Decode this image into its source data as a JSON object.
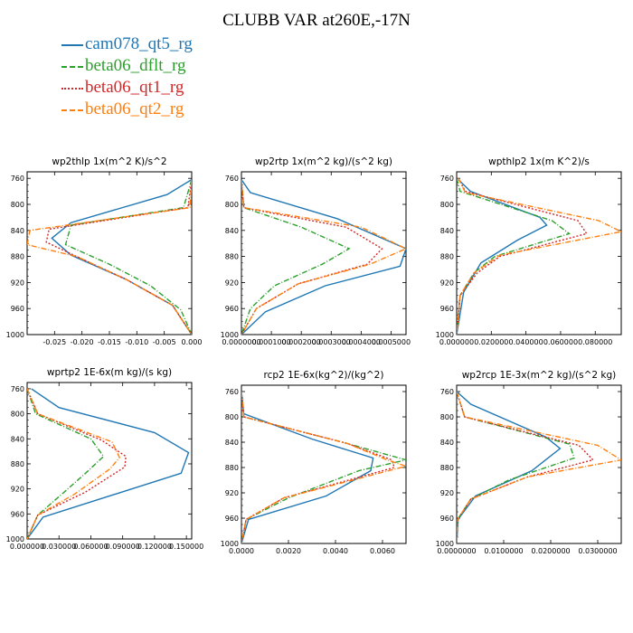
{
  "title": "CLUBB VAR at260E,-17N",
  "legend": [
    {
      "name": "cam078_qt5_rg",
      "color": "#1f77b4",
      "dash": "solid"
    },
    {
      "name": "beta06_dflt_rg",
      "color": "#2ca02c",
      "dash": "dashdot"
    },
    {
      "name": "beta06_qt1_rg",
      "color": "#d62728",
      "dash": "dotted"
    },
    {
      "name": "beta06_qt2_rg",
      "color": "#ff7f0e",
      "dash": "dashdot"
    }
  ],
  "chart_data": [
    {
      "type": "line",
      "title": "wp2thlp   1x(m^2 K)/s^2",
      "xlim": [
        -0.03,
        0.0
      ],
      "ylim": [
        1000,
        750
      ],
      "xticks": [
        "-0.025",
        "-0.020",
        "-0.015",
        "-0.010",
        "-0.005",
        "0.000"
      ],
      "xtick_values": [
        -0.025,
        -0.02,
        -0.015,
        -0.01,
        -0.005,
        0.0
      ],
      "yticks": [
        760,
        800,
        840,
        880,
        920,
        960,
        1000
      ],
      "series": [
        {
          "name": "cam078_qt5_rg",
          "x": [
            0.0,
            -0.0045,
            -0.022,
            -0.0255,
            -0.022,
            -0.012,
            -0.0035,
            0.0
          ],
          "y": [
            762,
            785,
            828,
            852,
            878,
            915,
            955,
            1000
          ]
        },
        {
          "name": "beta06_dflt_rg",
          "x": [
            0.0,
            -0.0015,
            -0.022,
            -0.023,
            -0.015,
            -0.0075,
            -0.002,
            0.0
          ],
          "y": [
            762,
            805,
            832,
            862,
            892,
            925,
            962,
            1000
          ]
        },
        {
          "name": "beta06_qt1_rg",
          "x": [
            0.0,
            -0.0007,
            -0.026,
            -0.0265,
            -0.021,
            -0.012,
            -0.0035,
            0.0
          ],
          "y": [
            762,
            805,
            838,
            858,
            880,
            915,
            955,
            1000
          ]
        },
        {
          "name": "beta06_qt2_rg",
          "x": [
            0.0,
            -0.0003,
            -0.0295,
            -0.03,
            -0.021,
            -0.012,
            -0.0035,
            0.0
          ],
          "y": [
            762,
            805,
            840,
            862,
            880,
            915,
            955,
            1000
          ]
        }
      ]
    },
    {
      "type": "line",
      "title": "wp2rtp   1x(m^2 kg)/(s^2 kg)",
      "xlim": [
        0.0,
        0.00055
      ],
      "ylim": [
        1000,
        750
      ],
      "xticks": [
        "0.0000000",
        "0.0001000",
        "0.0002000",
        "0.0003000",
        "0.0004000",
        "0.0005000"
      ],
      "xtick_values": [
        0.0,
        0.0001,
        0.0002,
        0.0003,
        0.0004,
        0.0005
      ],
      "yticks": [
        760,
        800,
        840,
        880,
        920,
        960,
        1000
      ],
      "series": [
        {
          "name": "cam078_qt5_rg",
          "x": [
            0.0,
            3e-05,
            0.00032,
            0.00055,
            0.00053,
            0.00028,
            8e-05,
            0.0
          ],
          "y": [
            762,
            782,
            822,
            868,
            895,
            925,
            965,
            1000
          ]
        },
        {
          "name": "beta06_dflt_rg",
          "x": [
            0.0,
            8e-06,
            0.0002,
            0.00036,
            0.00027,
            0.00011,
            3e-05,
            0.0
          ],
          "y": [
            762,
            805,
            835,
            868,
            892,
            925,
            960,
            1000
          ]
        },
        {
          "name": "beta06_qt1_rg",
          "x": [
            0.0,
            8e-06,
            0.00035,
            0.00047,
            0.00042,
            0.00019,
            5e-05,
            0.0
          ],
          "y": [
            762,
            805,
            835,
            868,
            892,
            922,
            960,
            1000
          ]
        },
        {
          "name": "beta06_qt2_rg",
          "x": [
            0.0,
            8e-06,
            0.0004,
            0.00055,
            0.00043,
            0.00019,
            5e-05,
            0.0
          ],
          "y": [
            762,
            805,
            835,
            868,
            892,
            922,
            960,
            1000
          ]
        }
      ]
    },
    {
      "type": "line",
      "title": "wpthlp2   1x(m K^2)/s",
      "xlim": [
        0.0,
        0.095
      ],
      "ylim": [
        1000,
        750
      ],
      "xticks": [
        "0.000000",
        "0.020000",
        "0.040000",
        "0.060000",
        "0.080000"
      ],
      "xtick_values": [
        0.0,
        0.02,
        0.04,
        0.06,
        0.08
      ],
      "yticks": [
        760,
        800,
        840,
        880,
        920,
        960,
        1000
      ],
      "series": [
        {
          "name": "cam078_qt5_rg",
          "x": [
            0.001,
            0.008,
            0.048,
            0.052,
            0.035,
            0.014,
            0.004,
            0.0
          ],
          "y": [
            762,
            780,
            820,
            832,
            855,
            890,
            935,
            1000
          ]
        },
        {
          "name": "beta06_dflt_rg",
          "x": [
            0.0,
            0.002,
            0.055,
            0.065,
            0.022,
            0.01,
            0.002,
            0.0
          ],
          "y": [
            760,
            780,
            825,
            845,
            880,
            905,
            940,
            1000
          ]
        },
        {
          "name": "beta06_qt1_rg",
          "x": [
            0.001,
            0.005,
            0.07,
            0.075,
            0.025,
            0.012,
            0.002,
            0.0
          ],
          "y": [
            760,
            780,
            825,
            845,
            880,
            905,
            940,
            1000
          ]
        },
        {
          "name": "beta06_qt2_rg",
          "x": [
            0.001,
            0.005,
            0.082,
            0.095,
            0.025,
            0.01,
            0.002,
            0.0
          ],
          "y": [
            760,
            782,
            825,
            842,
            878,
            905,
            940,
            1000
          ]
        }
      ]
    },
    {
      "type": "line",
      "title": "wprtp2   1E-6x(m kg)/(s kg)",
      "xlim": [
        0.0,
        0.155
      ],
      "ylim": [
        1000,
        750
      ],
      "xticks": [
        "0.000000",
        "0.030000",
        "0.060000",
        "0.090000",
        "0.120000",
        "0.150000"
      ],
      "xtick_values": [
        0.0,
        0.03,
        0.06,
        0.09,
        0.12,
        0.15
      ],
      "yticks": [
        760,
        800,
        840,
        880,
        920,
        960,
        1000
      ],
      "series": [
        {
          "name": "cam078_qt5_rg",
          "x": [
            0.004,
            0.03,
            0.12,
            0.152,
            0.145,
            0.08,
            0.015,
            0.0
          ],
          "y": [
            760,
            790,
            830,
            862,
            895,
            930,
            965,
            1000
          ]
        },
        {
          "name": "beta06_dflt_rg",
          "x": [
            0.0,
            0.008,
            0.06,
            0.072,
            0.055,
            0.035,
            0.01,
            0.0
          ],
          "y": [
            760,
            800,
            840,
            868,
            895,
            925,
            962,
            1000
          ]
        },
        {
          "name": "beta06_qt1_rg",
          "x": [
            0.0,
            0.01,
            0.07,
            0.093,
            0.092,
            0.055,
            0.01,
            0.0
          ],
          "y": [
            760,
            800,
            842,
            868,
            885,
            925,
            962,
            1000
          ]
        },
        {
          "name": "beta06_qt2_rg",
          "x": [
            0.0,
            0.01,
            0.08,
            0.087,
            0.078,
            0.045,
            0.01,
            0.0
          ],
          "y": [
            760,
            800,
            845,
            870,
            888,
            928,
            962,
            1000
          ]
        }
      ]
    },
    {
      "type": "line",
      "title": "rcp2   1E-6x(kg^2)/(kg^2)",
      "xlim": [
        0.0,
        0.007
      ],
      "ylim": [
        1000,
        750
      ],
      "xticks": [
        "0.0000",
        "0.0020",
        "0.0040",
        "0.0060"
      ],
      "xtick_values": [
        0.0,
        0.002,
        0.004,
        0.006
      ],
      "yticks": [
        760,
        800,
        840,
        880,
        920,
        960,
        1000
      ],
      "series": [
        {
          "name": "cam078_qt5_rg",
          "x": [
            0.0,
            0.0001,
            0.003,
            0.0056,
            0.0055,
            0.0036,
            0.0003,
            0.0
          ],
          "y": [
            760,
            795,
            835,
            865,
            885,
            925,
            962,
            1000
          ]
        },
        {
          "name": "beta06_dflt_rg",
          "x": [
            0.0,
            0.0001,
            0.0043,
            0.007,
            0.005,
            0.002,
            0.0002,
            0.0
          ],
          "y": [
            760,
            800,
            840,
            868,
            885,
            928,
            962,
            1000
          ]
        },
        {
          "name": "beta06_qt1_rg",
          "x": [
            0.0,
            0.0001,
            0.0045,
            0.0064,
            0.0065,
            0.0018,
            0.0002,
            0.0
          ],
          "y": [
            760,
            800,
            842,
            868,
            880,
            928,
            962,
            1000
          ]
        },
        {
          "name": "beta06_qt2_rg",
          "x": [
            0.0,
            0.0001,
            0.0045,
            0.0062,
            0.007,
            0.0018,
            0.0002,
            0.0
          ],
          "y": [
            760,
            800,
            842,
            868,
            878,
            928,
            962,
            1000
          ]
        }
      ]
    },
    {
      "type": "line",
      "title": "wp2rcp   1E-3x(m^2 kg)/(s^2 kg)",
      "xlim": [
        0.0,
        0.035
      ],
      "ylim": [
        1000,
        750
      ],
      "xticks": [
        "0.0000000",
        "0.0100000",
        "0.0200000",
        "0.0300000"
      ],
      "xtick_values": [
        0.0,
        0.01,
        0.02,
        0.03
      ],
      "yticks": [
        760,
        800,
        840,
        880,
        920,
        960,
        1000
      ],
      "series": [
        {
          "name": "cam078_qt5_rg",
          "x": [
            0.0,
            0.003,
            0.019,
            0.022,
            0.016,
            0.004,
            0.0003,
            0.0
          ],
          "y": [
            760,
            780,
            832,
            850,
            885,
            925,
            962,
            1000
          ]
        },
        {
          "name": "beta06_dflt_rg",
          "x": [
            0.0,
            0.0017,
            0.024,
            0.025,
            0.011,
            0.003,
            0.0002,
            0.0
          ],
          "y": [
            760,
            800,
            843,
            865,
            900,
            930,
            962,
            1000
          ]
        },
        {
          "name": "beta06_qt1_rg",
          "x": [
            0.0,
            0.0017,
            0.026,
            0.029,
            0.015,
            0.003,
            0.0002,
            0.0
          ],
          "y": [
            760,
            800,
            845,
            868,
            895,
            930,
            962,
            1000
          ]
        },
        {
          "name": "beta06_qt2_rg",
          "x": [
            0.0,
            0.0017,
            0.03,
            0.035,
            0.015,
            0.003,
            0.0002,
            0.0
          ],
          "y": [
            760,
            800,
            845,
            868,
            895,
            930,
            962,
            1000
          ]
        }
      ]
    }
  ]
}
